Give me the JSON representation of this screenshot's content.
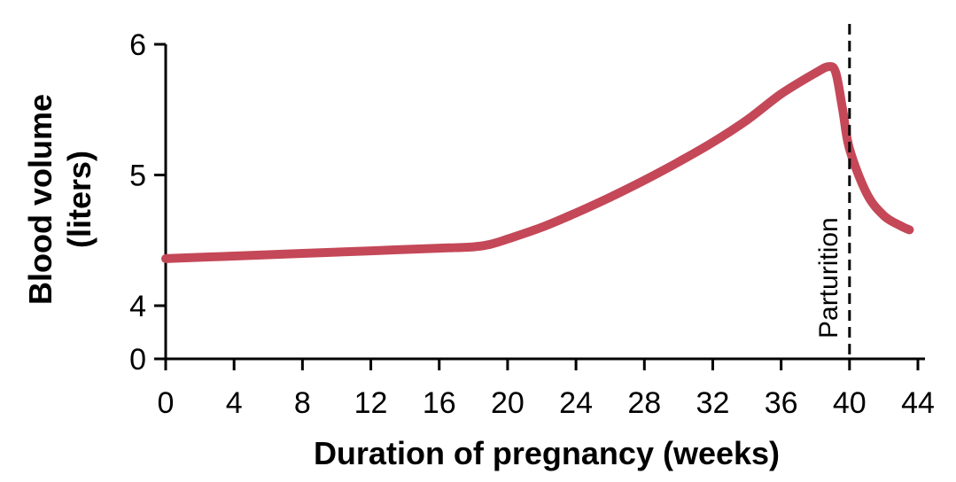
{
  "chart_data": {
    "type": "line",
    "xlabel": "Duration of pregnancy (weeks)",
    "ylabel_line1": "Blood volume",
    "ylabel_line2": "(liters)",
    "x_ticks": [
      0,
      4,
      8,
      12,
      16,
      20,
      24,
      28,
      32,
      36,
      40,
      44
    ],
    "y_ticks": [
      0,
      4,
      5,
      6
    ],
    "xlim": [
      0,
      44
    ],
    "ylim_note": "broken axis: 0 then 4 to 6",
    "grid": false,
    "line_color": "#c44858",
    "annotation": {
      "text": "Parturition",
      "x": 40
    },
    "series": [
      {
        "x": [
          0,
          4,
          8,
          12,
          16,
          18,
          19,
          20,
          22,
          24,
          26,
          28,
          30,
          32,
          34,
          36,
          38,
          38.8,
          39.2,
          39.6,
          40,
          41,
          42,
          43,
          43.5
        ],
        "y": [
          4.36,
          4.38,
          4.4,
          4.42,
          4.44,
          4.45,
          4.47,
          4.51,
          4.6,
          4.71,
          4.83,
          4.96,
          5.1,
          5.25,
          5.42,
          5.62,
          5.78,
          5.83,
          5.78,
          5.5,
          5.2,
          4.86,
          4.69,
          4.61,
          4.58
        ]
      }
    ]
  }
}
